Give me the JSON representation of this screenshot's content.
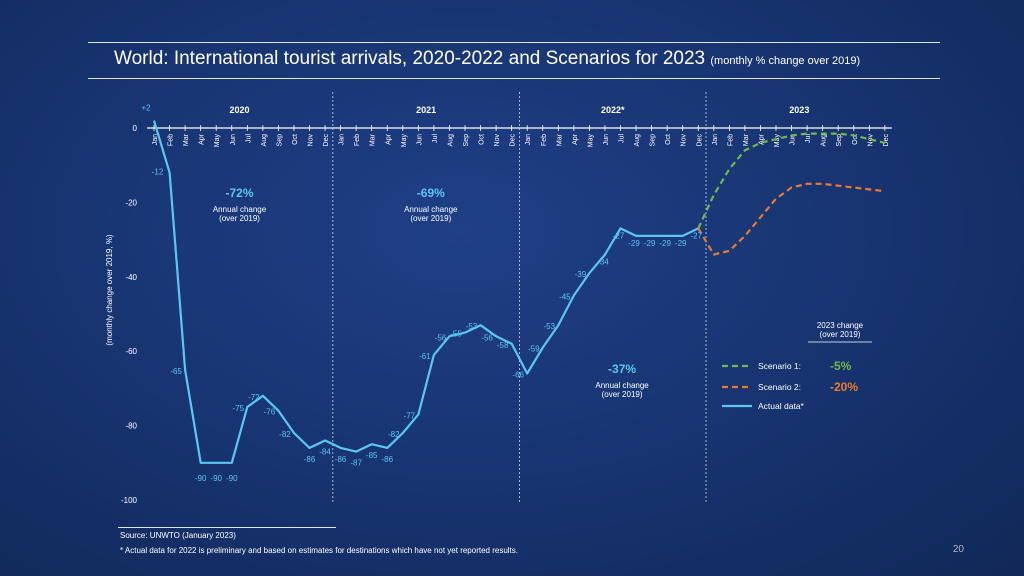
{
  "header": {
    "title": "World: International tourist arrivals, 2020-2022 and Scenarios for 2023",
    "subtitle": "(monthly % change over 2019)"
  },
  "footer": {
    "source": "Source: UNWTO (January 2023)",
    "note": "* Actual data for 2022 is preliminary and based on estimates for destinations which have not yet reported results.",
    "page_number": "20"
  },
  "chart_data": {
    "type": "line",
    "ylabel": "(monthly change over 2019, %)",
    "ylim": [
      -100,
      0
    ],
    "yticks": [
      "0",
      "-20",
      "-40",
      "-60",
      "-80",
      "-100"
    ],
    "years": [
      "2020",
      "2021",
      "2022*",
      "2023"
    ],
    "months": [
      "Jan",
      "Feb",
      "Mar",
      "Apr",
      "May",
      "Jun",
      "Jul",
      "Aug",
      "Sep",
      "Oct",
      "Nov",
      "Dec"
    ],
    "annual_changes": [
      {
        "value": "-72%",
        "label": "Annual change",
        "sub": "(over 2019)"
      },
      {
        "value": "-69%",
        "label": "Annual change",
        "sub": "(over 2019)"
      },
      {
        "value": "-37%",
        "label": "Annual change",
        "sub": "(over 2019)"
      }
    ],
    "series": [
      {
        "name": "Actual data*",
        "color": "#5cc6f2",
        "x_start": 0,
        "values": [
          2,
          -12,
          -65,
          -90,
          -90,
          -90,
          -75,
          -72,
          -76,
          -82,
          -86,
          -84,
          -86,
          -87,
          -85,
          -86,
          -82,
          -77,
          -61,
          -56,
          -55,
          -53,
          -56,
          -58,
          -66,
          -59,
          -53,
          -45,
          -39,
          -34,
          -27,
          -29,
          -29,
          -29,
          -29,
          -27
        ],
        "labels": [
          "+2",
          "-12",
          "-65",
          "-90",
          "-90",
          "-90",
          "-75",
          "-72",
          "-76",
          "-82",
          "-86",
          "-84",
          "-86",
          "-87",
          "-85",
          "-86",
          "-82",
          "-77",
          "-61",
          "-56",
          "-55",
          "-53",
          "-56",
          "-58",
          "-66",
          "-59",
          "-53",
          "-45",
          "-39",
          "-34",
          "-27",
          "-29",
          "-29",
          "-29",
          "-29",
          "-27"
        ]
      },
      {
        "name": "Scenario 1:",
        "change": "-5%",
        "color": "#72b84a",
        "dashed": true,
        "x_start": 35,
        "values": [
          -27,
          -18,
          -11,
          -6,
          -4,
          -3,
          -2,
          -1.5,
          -1.5,
          -1.5,
          -2,
          -3,
          -4
        ]
      },
      {
        "name": "Scenario 2:",
        "change": "-20%",
        "color": "#ea7a2e",
        "dashed": true,
        "x_start": 35,
        "values": [
          -27,
          -34,
          -33,
          -29,
          -24,
          -19,
          -16,
          -15,
          -15,
          -15.5,
          -16,
          -16.5,
          -17
        ]
      }
    ],
    "legend": {
      "heading": "2023 change",
      "heading_sub": "(over 2019)",
      "placement": "bottom-right"
    }
  }
}
